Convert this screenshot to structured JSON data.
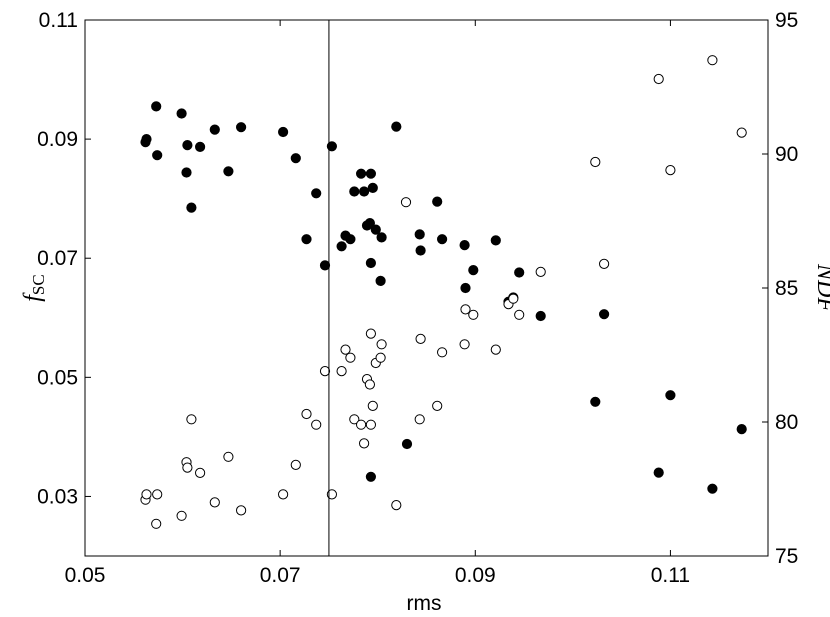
{
  "chart_data": {
    "type": "scatter",
    "xlabel": "rms",
    "ylabel_left_main": "f",
    "ylabel_left_sub": "SC",
    "ylabel_right": "NDF",
    "xlim": [
      0.05,
      0.12
    ],
    "ylim_left": [
      0.02,
      0.11
    ],
    "ylim_right": [
      75,
      95
    ],
    "x_ticks": [
      0.05,
      0.07,
      0.09,
      0.11
    ],
    "x_tick_labels": [
      "0.05",
      "0.07",
      "0.09",
      "0.11"
    ],
    "y_left_ticks": [
      0.03,
      0.05,
      0.07,
      0.09,
      0.11
    ],
    "y_left_tick_labels": [
      "0.03",
      "0.05",
      "0.07",
      "0.09",
      "0.11"
    ],
    "y_right_ticks": [
      75,
      80,
      85,
      90,
      95
    ],
    "y_right_tick_labels": [
      "75",
      "80",
      "85",
      "90",
      "95"
    ],
    "vertical_line_x": 0.075,
    "series": [
      {
        "marker": "filled-circle",
        "axis": "left",
        "points": [
          [
            0.0562,
            0.0895
          ],
          [
            0.0563,
            0.09
          ],
          [
            0.0573,
            0.0955
          ],
          [
            0.0574,
            0.0873
          ],
          [
            0.0599,
            0.0943
          ],
          [
            0.0604,
            0.0844
          ],
          [
            0.0605,
            0.089
          ],
          [
            0.0609,
            0.0785
          ],
          [
            0.0618,
            0.0887
          ],
          [
            0.0633,
            0.0916
          ],
          [
            0.0647,
            0.0846
          ],
          [
            0.066,
            0.092
          ],
          [
            0.0703,
            0.0912
          ],
          [
            0.0716,
            0.0868
          ],
          [
            0.0727,
            0.0732
          ],
          [
            0.0737,
            0.0809
          ],
          [
            0.0746,
            0.0688
          ],
          [
            0.0753,
            0.0888
          ],
          [
            0.0763,
            0.072
          ],
          [
            0.0767,
            0.0738
          ],
          [
            0.0772,
            0.0732
          ],
          [
            0.0776,
            0.0812
          ],
          [
            0.0783,
            0.0842
          ],
          [
            0.0786,
            0.0812
          ],
          [
            0.0789,
            0.0755
          ],
          [
            0.0792,
            0.0759
          ],
          [
            0.0793,
            0.0842
          ],
          [
            0.0793,
            0.0692
          ],
          [
            0.0795,
            0.0818
          ],
          [
            0.0798,
            0.0748
          ],
          [
            0.0804,
            0.0735
          ],
          [
            0.0803,
            0.0662
          ],
          [
            0.0819,
            0.0921
          ],
          [
            0.0843,
            0.074
          ],
          [
            0.0844,
            0.0713
          ],
          [
            0.0861,
            0.0795
          ],
          [
            0.0866,
            0.0732
          ],
          [
            0.0889,
            0.0722
          ],
          [
            0.089,
            0.065
          ],
          [
            0.0898,
            0.068
          ],
          [
            0.0921,
            0.073
          ],
          [
            0.0934,
            0.0627
          ],
          [
            0.0939,
            0.0634
          ],
          [
            0.0945,
            0.0676
          ],
          [
            0.0967,
            0.0603
          ],
          [
            0.0793,
            0.0333
          ],
          [
            0.083,
            0.0388
          ],
          [
            0.1023,
            0.0459
          ],
          [
            0.1032,
            0.0606
          ],
          [
            0.1088,
            0.034
          ],
          [
            0.11,
            0.047
          ],
          [
            0.1143,
            0.0313
          ],
          [
            0.1173,
            0.0413
          ]
        ]
      },
      {
        "marker": "open-circle",
        "axis": "right",
        "points": [
          [
            0.0562,
            77.1
          ],
          [
            0.0563,
            77.3
          ],
          [
            0.0573,
            76.2
          ],
          [
            0.0574,
            77.3
          ],
          [
            0.0599,
            76.5
          ],
          [
            0.0604,
            78.5
          ],
          [
            0.0605,
            78.3
          ],
          [
            0.0609,
            80.1
          ],
          [
            0.0618,
            78.1
          ],
          [
            0.0633,
            77.0
          ],
          [
            0.0647,
            78.7
          ],
          [
            0.066,
            76.7
          ],
          [
            0.0703,
            77.3
          ],
          [
            0.0716,
            78.4
          ],
          [
            0.0727,
            80.3
          ],
          [
            0.0737,
            79.9
          ],
          [
            0.0746,
            81.9
          ],
          [
            0.0753,
            77.3
          ],
          [
            0.0763,
            81.9
          ],
          [
            0.0767,
            82.7
          ],
          [
            0.0772,
            82.4
          ],
          [
            0.0776,
            80.1
          ],
          [
            0.0783,
            79.9
          ],
          [
            0.0786,
            79.2
          ],
          [
            0.0789,
            81.6
          ],
          [
            0.0792,
            81.4
          ],
          [
            0.0793,
            83.3
          ],
          [
            0.0793,
            79.9
          ],
          [
            0.0795,
            80.6
          ],
          [
            0.0798,
            82.2
          ],
          [
            0.0804,
            82.9
          ],
          [
            0.0803,
            82.4
          ],
          [
            0.0819,
            76.9
          ],
          [
            0.0829,
            88.2
          ],
          [
            0.0843,
            80.1
          ],
          [
            0.0844,
            83.1
          ],
          [
            0.0861,
            80.6
          ],
          [
            0.0866,
            82.6
          ],
          [
            0.0889,
            82.9
          ],
          [
            0.089,
            84.2
          ],
          [
            0.0898,
            84.0
          ],
          [
            0.0921,
            82.7
          ],
          [
            0.0934,
            84.4
          ],
          [
            0.0939,
            84.6
          ],
          [
            0.0945,
            84.0
          ],
          [
            0.0967,
            85.6
          ],
          [
            0.1023,
            89.7
          ],
          [
            0.1032,
            85.9
          ],
          [
            0.1088,
            92.8
          ],
          [
            0.11,
            89.4
          ],
          [
            0.1143,
            93.5
          ],
          [
            0.1173,
            90.8
          ]
        ]
      }
    ]
  }
}
